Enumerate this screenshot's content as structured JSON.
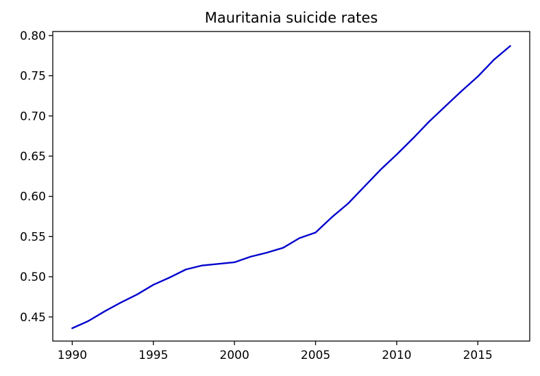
{
  "chart_data": {
    "type": "line",
    "title": "Mauritania suicide rates",
    "xlabel": "",
    "ylabel": "",
    "xlim": [
      1988.8,
      2018.2
    ],
    "ylim": [
      0.42,
      0.805
    ],
    "xticks": [
      1990,
      1995,
      2000,
      2005,
      2010,
      2015
    ],
    "yticks": [
      0.45,
      0.5,
      0.55,
      0.6,
      0.65,
      0.7,
      0.75,
      0.8
    ],
    "grid": false,
    "legend": "none",
    "series": [
      {
        "color": "#0000cd",
        "x": [
          1990,
          1991,
          1992,
          1993,
          1994,
          1995,
          1996,
          1997,
          1998,
          1999,
          2000,
          2001,
          2002,
          2003,
          2004,
          2005,
          2006,
          2007,
          2008,
          2009,
          2010,
          2011,
          2012,
          2013,
          2014,
          2015,
          2016,
          2017
        ],
        "y": [
          0.436,
          0.445,
          0.457,
          0.468,
          0.478,
          0.49,
          0.499,
          0.509,
          0.514,
          0.516,
          0.518,
          0.525,
          0.53,
          0.536,
          0.548,
          0.555,
          0.574,
          0.591,
          0.612,
          0.633,
          0.652,
          0.672,
          0.693,
          0.712,
          0.731,
          0.749,
          0.77,
          0.787
        ]
      }
    ]
  }
}
